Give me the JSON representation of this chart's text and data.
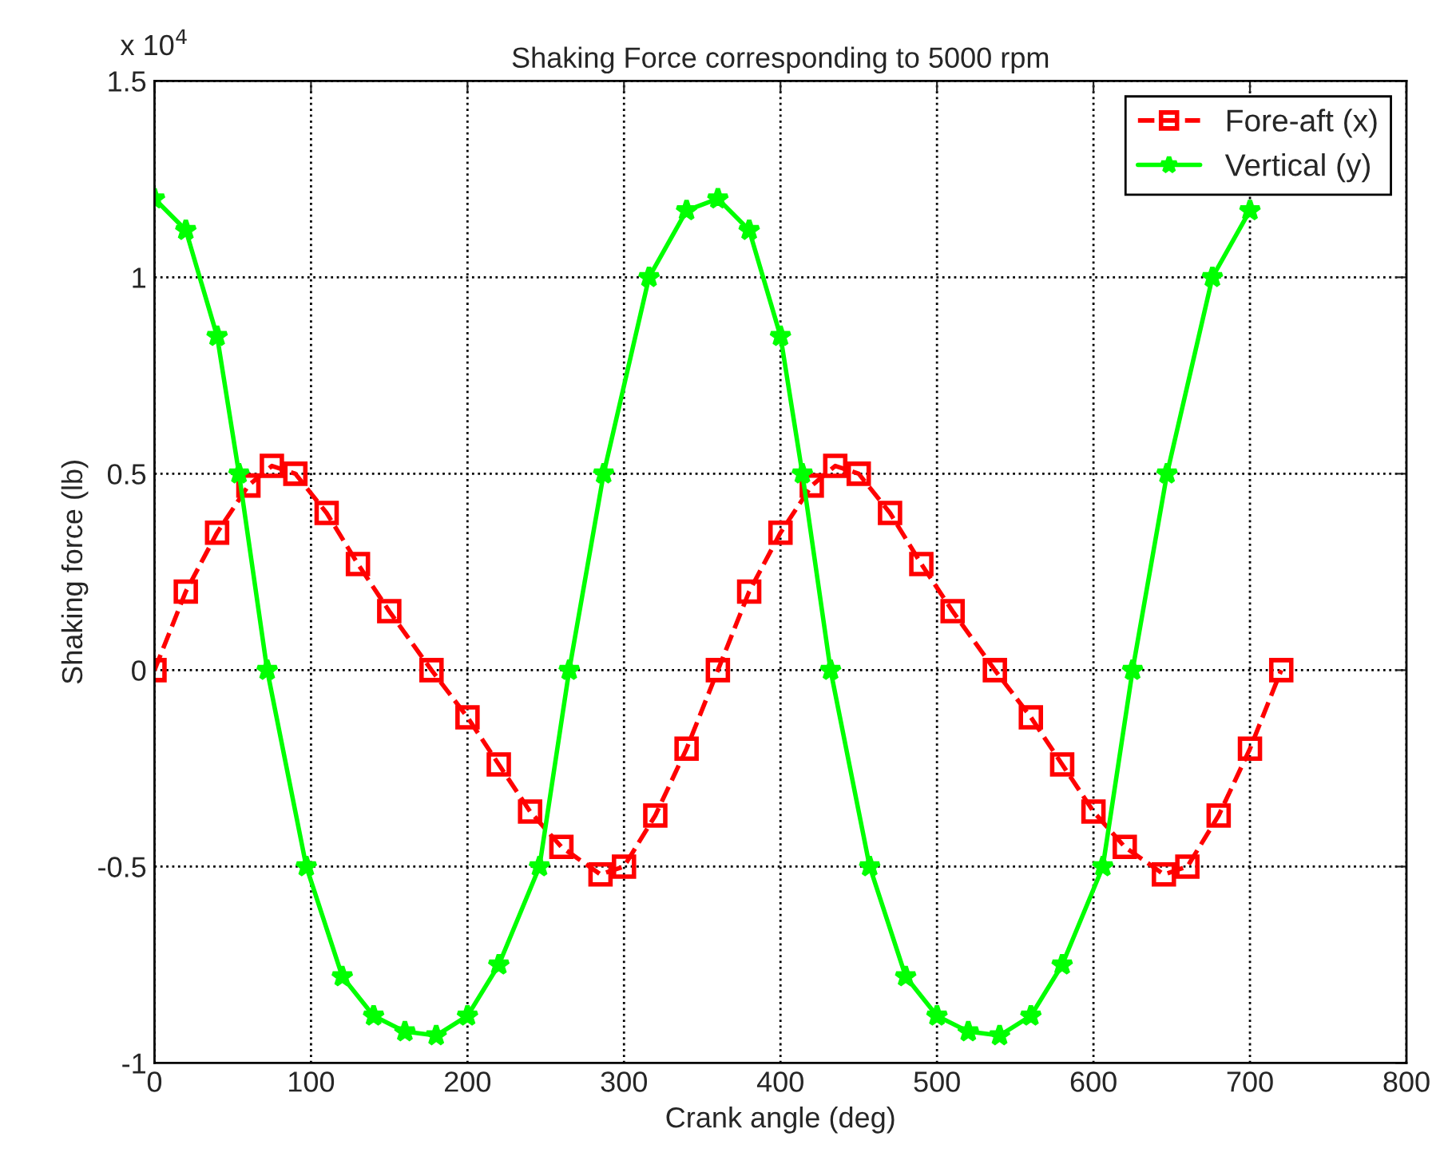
{
  "chart_data": {
    "type": "line",
    "title": "Shaking Force corresponding to 5000 rpm",
    "xlabel": "Crank angle (deg)",
    "ylabel": "Shaking force (lb)",
    "annotations": [
      "x 10$^{4}$"
    ],
    "xlim": [
      0,
      800
    ],
    "xticks": [
      0,
      100,
      200,
      300,
      400,
      500,
      600,
      700,
      800
    ],
    "ylim": [
      -1,
      1.5
    ],
    "yticks": [
      -1,
      -0.5,
      0,
      0.5,
      1,
      1.5
    ],
    "grid": true,
    "legend": "top right",
    "series": [
      {
        "name": "Fore-aft (x)",
        "color": "#ff0000",
        "marker": "square",
        "line_style": "dashed",
        "x": [
          0,
          20,
          40,
          60,
          75,
          90,
          110,
          130,
          150,
          177,
          200,
          220,
          240,
          260,
          285,
          300,
          320,
          340,
          360,
          380,
          400,
          420,
          435,
          450,
          470,
          490,
          510,
          537,
          560,
          580,
          600,
          620,
          645,
          660,
          680,
          700,
          720
        ],
        "values": [
          0,
          0.2,
          0.35,
          0.47,
          0.52,
          0.5,
          0.4,
          0.27,
          0.15,
          0,
          -0.12,
          -0.24,
          -0.36,
          -0.45,
          -0.52,
          -0.5,
          -0.37,
          -0.2,
          0,
          0.2,
          0.35,
          0.47,
          0.52,
          0.5,
          0.4,
          0.27,
          0.15,
          0,
          -0.12,
          -0.24,
          -0.36,
          -0.45,
          -0.52,
          -0.5,
          -0.37,
          -0.2,
          0
        ]
      },
      {
        "name": "Vertical (y)",
        "color": "#00ff00",
        "marker": "star",
        "line_style": "solid",
        "x": [
          0,
          20,
          40,
          54,
          72,
          97,
          120,
          140,
          160,
          180,
          200,
          220,
          246,
          265,
          287,
          316,
          340,
          360,
          380,
          400,
          414,
          432,
          457,
          480,
          500,
          520,
          540,
          560,
          580,
          606,
          625,
          647,
          676,
          700
        ],
        "values": [
          1.2,
          1.12,
          0.85,
          0.5,
          0,
          -0.5,
          -0.78,
          -0.88,
          -0.92,
          -0.93,
          -0.88,
          -0.75,
          -0.5,
          0,
          0.5,
          1.0,
          1.17,
          1.2,
          1.12,
          0.85,
          0.5,
          0,
          -0.5,
          -0.78,
          -0.88,
          -0.92,
          -0.93,
          -0.88,
          -0.75,
          -0.5,
          0,
          0.5,
          1.0,
          1.17
        ]
      }
    ]
  }
}
